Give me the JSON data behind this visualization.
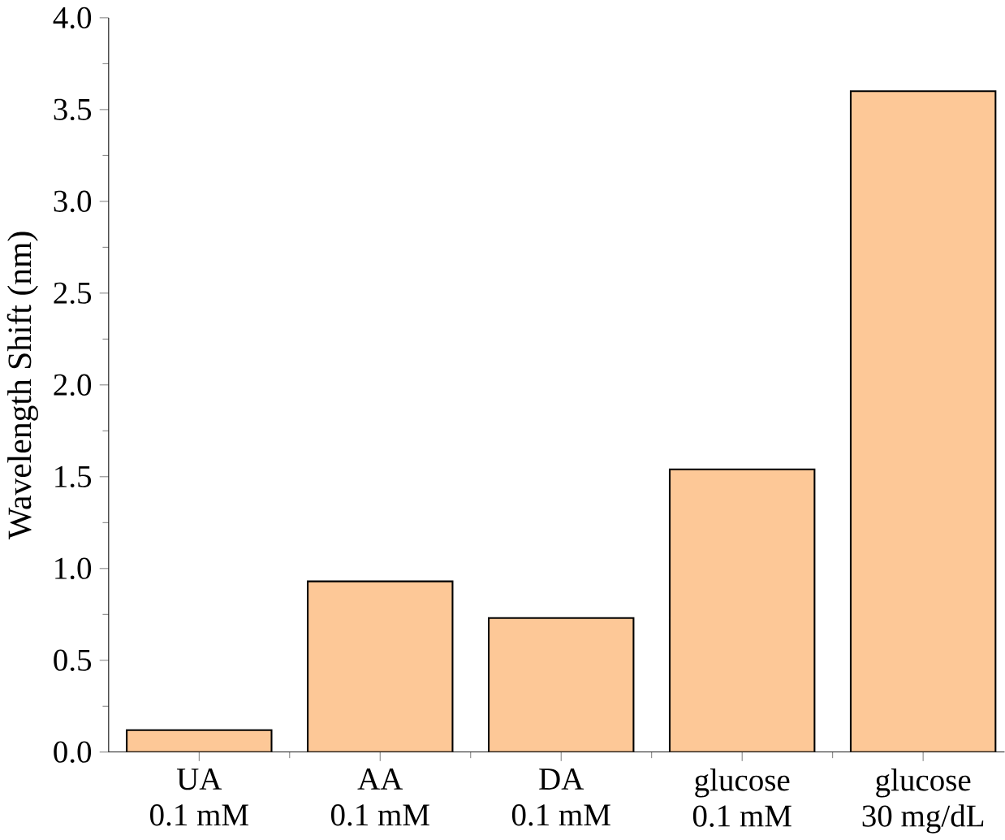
{
  "chart_data": {
    "type": "bar",
    "ylabel": "Wavelength Shift (nm)",
    "categories": [
      "UA\n0.1 mM",
      "AA\n0.1 mM",
      "DA\n0.1 mM",
      "glucose\n0.1 mM",
      "glucose\n30 mg/dL"
    ],
    "values": [
      0.12,
      0.93,
      0.73,
      1.54,
      3.6
    ],
    "color": "#fdc897",
    "ylim": [
      0,
      4
    ],
    "yticks": [
      {
        "value": 0,
        "label": "0.0"
      },
      {
        "value": 0.5,
        "label": "0.5"
      },
      {
        "value": 1,
        "label": "1.0"
      },
      {
        "value": 1.5,
        "label": "1.5"
      },
      {
        "value": 2,
        "label": "2.0"
      },
      {
        "value": 2.5,
        "label": "2.5"
      },
      {
        "value": 3,
        "label": "3.0"
      },
      {
        "value": 3.5,
        "label": "3.5"
      },
      {
        "value": 4,
        "label": "4.0"
      }
    ],
    "grid": false
  }
}
